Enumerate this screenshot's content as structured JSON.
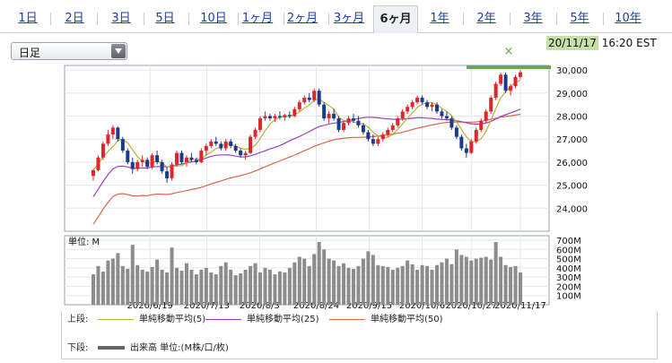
{
  "tabs": [
    {
      "label": "1日",
      "active": false
    },
    {
      "label": "2日",
      "active": false
    },
    {
      "label": "3日",
      "active": false
    },
    {
      "label": "5日",
      "active": false
    },
    {
      "label": "10日",
      "active": false
    },
    {
      "label": "1ヶ月",
      "active": false
    },
    {
      "label": "2ヶ月",
      "active": false
    },
    {
      "label": "3ヶ月",
      "active": false
    },
    {
      "label": "6ヶ月",
      "active": true
    },
    {
      "label": "1年",
      "active": false
    },
    {
      "label": "2年",
      "active": false
    },
    {
      "label": "3年",
      "active": false
    },
    {
      "label": "5年",
      "active": false
    },
    {
      "label": "10年",
      "active": false
    }
  ],
  "period_select": {
    "value": "日足"
  },
  "timestamp": {
    "date": "20/11/17",
    "time": "16:20 EST"
  },
  "colors": {
    "up": "#e0262b",
    "down": "#1c3a8c",
    "ma5": "#b8b23a",
    "ma25": "#9a3fc4",
    "ma50": "#d4694a",
    "volume": "#8c8c8c",
    "highlight": "#6aa84f"
  },
  "legend": {
    "upper_label": "上段:",
    "lower_label": "下段:",
    "ma5": "単純移動平均(5)",
    "ma25": "単純移動平均(25)",
    "ma50": "単純移動平均(50)",
    "volume": "出来高 単位:(M株/口/枚)"
  },
  "chart_data": [
    {
      "type": "candlestick",
      "y_ticks": [
        "24,000",
        "25,000",
        "26,000",
        "27,000",
        "28,000",
        "29,000",
        "30,000"
      ],
      "ylim": [
        23000,
        30200
      ],
      "x_tick_labels": [
        "2020/6/19",
        "2020/7/13",
        "2020/8/3",
        "2020/8/24",
        "2020/9/15",
        "2020/10/6",
        "2020/10/27",
        "2020/11/17"
      ],
      "highlight_marker": "×",
      "series": [
        {
          "name": "単純移動平均(5)",
          "color": "#b8b23a",
          "values": []
        },
        {
          "name": "単純移動平均(25)",
          "color": "#9a3fc4",
          "values": []
        },
        {
          "name": "単純移動平均(50)",
          "color": "#d4694a",
          "values": []
        }
      ],
      "ohlc": [
        [
          25400,
          25700,
          25200,
          25650
        ],
        [
          25650,
          26300,
          25600,
          26200
        ],
        [
          26200,
          26900,
          26100,
          26800
        ],
        [
          26800,
          27400,
          26700,
          27200
        ],
        [
          27200,
          27600,
          27000,
          27500
        ],
        [
          27500,
          27550,
          26900,
          27000
        ],
        [
          27000,
          27100,
          26400,
          26500
        ],
        [
          26500,
          26600,
          25900,
          26000
        ],
        [
          26000,
          26200,
          25500,
          25700
        ],
        [
          25700,
          26100,
          25600,
          26000
        ],
        [
          26000,
          26300,
          25800,
          26100
        ],
        [
          26100,
          26200,
          25700,
          25800
        ],
        [
          25800,
          26400,
          25700,
          26300
        ],
        [
          26300,
          26500,
          25900,
          26000
        ],
        [
          26000,
          26100,
          25500,
          25600
        ],
        [
          25600,
          25800,
          25100,
          25300
        ],
        [
          25300,
          26000,
          25200,
          25900
        ],
        [
          25900,
          26500,
          25800,
          26400
        ],
        [
          26400,
          26500,
          25900,
          26000
        ],
        [
          26000,
          26300,
          25800,
          26200
        ],
        [
          26200,
          26400,
          26000,
          26100
        ],
        [
          26100,
          26200,
          25900,
          26000
        ],
        [
          26000,
          26600,
          25950,
          26500
        ],
        [
          26500,
          26800,
          26300,
          26700
        ],
        [
          26700,
          27000,
          26600,
          26900
        ],
        [
          26900,
          27100,
          26700,
          26800
        ],
        [
          26800,
          26900,
          26500,
          26600
        ],
        [
          26600,
          27000,
          26500,
          26900
        ],
        [
          26900,
          27000,
          26600,
          26700
        ],
        [
          26700,
          26800,
          26400,
          26500
        ],
        [
          26500,
          26600,
          26200,
          26300
        ],
        [
          26300,
          26500,
          26100,
          26400
        ],
        [
          26400,
          27200,
          26350,
          27100
        ],
        [
          27100,
          27500,
          27000,
          27400
        ],
        [
          27400,
          28000,
          27300,
          27900
        ],
        [
          27900,
          28200,
          27800,
          28000
        ],
        [
          28000,
          28100,
          27800,
          27900
        ],
        [
          27900,
          28100,
          27750,
          28000
        ],
        [
          28000,
          28200,
          27850,
          27950
        ],
        [
          27950,
          28100,
          27800,
          28050
        ],
        [
          28050,
          28200,
          27900,
          28000
        ],
        [
          28000,
          28400,
          27950,
          28300
        ],
        [
          28300,
          28700,
          28200,
          28600
        ],
        [
          28600,
          28900,
          28500,
          28800
        ],
        [
          28800,
          29000,
          28600,
          28700
        ],
        [
          28700,
          29200,
          28600,
          29100
        ],
        [
          29100,
          29200,
          28400,
          28500
        ],
        [
          28500,
          28600,
          27800,
          27900
        ],
        [
          27900,
          28200,
          27700,
          28100
        ],
        [
          28100,
          28300,
          27800,
          27900
        ],
        [
          27900,
          28000,
          27300,
          27400
        ],
        [
          27400,
          27800,
          27300,
          27700
        ],
        [
          27700,
          28000,
          27600,
          27900
        ],
        [
          27900,
          28100,
          27700,
          27800
        ],
        [
          27800,
          28000,
          27500,
          27600
        ],
        [
          27600,
          27700,
          27200,
          27300
        ],
        [
          27300,
          27400,
          26900,
          27000
        ],
        [
          27000,
          27200,
          26700,
          26800
        ],
        [
          26800,
          27100,
          26700,
          27000
        ],
        [
          27000,
          27300,
          26900,
          27200
        ],
        [
          27200,
          27500,
          27100,
          27400
        ],
        [
          27400,
          27700,
          27300,
          27600
        ],
        [
          27600,
          28000,
          27500,
          27900
        ],
        [
          27900,
          28300,
          27800,
          28200
        ],
        [
          28200,
          28500,
          28100,
          28400
        ],
        [
          28400,
          28700,
          28300,
          28600
        ],
        [
          28600,
          28900,
          28500,
          28800
        ],
        [
          28800,
          28900,
          28500,
          28600
        ],
        [
          28600,
          28700,
          28300,
          28400
        ],
        [
          28400,
          28600,
          28200,
          28500
        ],
        [
          28500,
          28600,
          28100,
          28200
        ],
        [
          28200,
          28300,
          27900,
          28000
        ],
        [
          28000,
          28200,
          27800,
          27900
        ],
        [
          27900,
          28000,
          27400,
          27500
        ],
        [
          27500,
          27600,
          27000,
          27100
        ],
        [
          27100,
          27200,
          26500,
          26600
        ],
        [
          26600,
          26800,
          26200,
          26400
        ],
        [
          26400,
          27000,
          26350,
          26900
        ],
        [
          26900,
          27500,
          26800,
          27400
        ],
        [
          27400,
          27900,
          27300,
          27800
        ],
        [
          27800,
          28300,
          27700,
          28200
        ],
        [
          28200,
          28900,
          28100,
          28800
        ],
        [
          28800,
          29500,
          28700,
          29400
        ],
        [
          29400,
          29900,
          29300,
          29800
        ],
        [
          29800,
          29900,
          29000,
          29100
        ],
        [
          29100,
          29400,
          28900,
          29300
        ],
        [
          29300,
          29800,
          29200,
          29700
        ],
        [
          29700,
          30000,
          29600,
          29900
        ]
      ]
    },
    {
      "type": "bar",
      "title": "単位: M",
      "y_ticks": [
        "100M",
        "200M",
        "300M",
        "400M",
        "500M",
        "600M",
        "700M"
      ],
      "ylim": [
        0,
        700
      ],
      "values": [
        330,
        420,
        360,
        480,
        500,
        560,
        420,
        390,
        650,
        430,
        380,
        360,
        410,
        490,
        380,
        350,
        620,
        400,
        370,
        450,
        380,
        330,
        380,
        400,
        350,
        330,
        420,
        460,
        380,
        320,
        340,
        380,
        420,
        450,
        350,
        400,
        380,
        330,
        360,
        350,
        400,
        460,
        520,
        500,
        420,
        550,
        680,
        600,
        500,
        480,
        420,
        450,
        400,
        390,
        420,
        500,
        580,
        540,
        430,
        420,
        410,
        380,
        400,
        420,
        480,
        440,
        380,
        430,
        420,
        380,
        430,
        460,
        500,
        440,
        600,
        540,
        520,
        480,
        500,
        510,
        520,
        490,
        680,
        520,
        430,
        410,
        420,
        350
      ]
    }
  ]
}
